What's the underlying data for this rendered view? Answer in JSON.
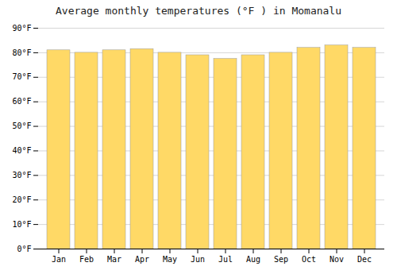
{
  "chart_data": {
    "type": "bar",
    "title": "Average monthly temperatures (°F ) in Momanalu",
    "categories": [
      "Jan",
      "Feb",
      "Mar",
      "Apr",
      "May",
      "Jun",
      "Jul",
      "Aug",
      "Sep",
      "Oct",
      "Nov",
      "Dec"
    ],
    "values": [
      81,
      80,
      81,
      81.5,
      80,
      79,
      77.5,
      79,
      80,
      82,
      83,
      82
    ],
    "color": "#FFD966",
    "ylim": [
      0,
      90
    ],
    "yticks": [
      {
        "value": 0,
        "label": "0°F"
      },
      {
        "value": 10,
        "label": "10°F"
      },
      {
        "value": 20,
        "label": "20°F"
      },
      {
        "value": 30,
        "label": "30°F"
      },
      {
        "value": 40,
        "label": "40°F"
      },
      {
        "value": 50,
        "label": "50°F"
      },
      {
        "value": 60,
        "label": "60°F"
      },
      {
        "value": 70,
        "label": "70°F"
      },
      {
        "value": 80,
        "label": "80°F"
      },
      {
        "value": 90,
        "label": "90°F"
      }
    ],
    "grid": true
  }
}
